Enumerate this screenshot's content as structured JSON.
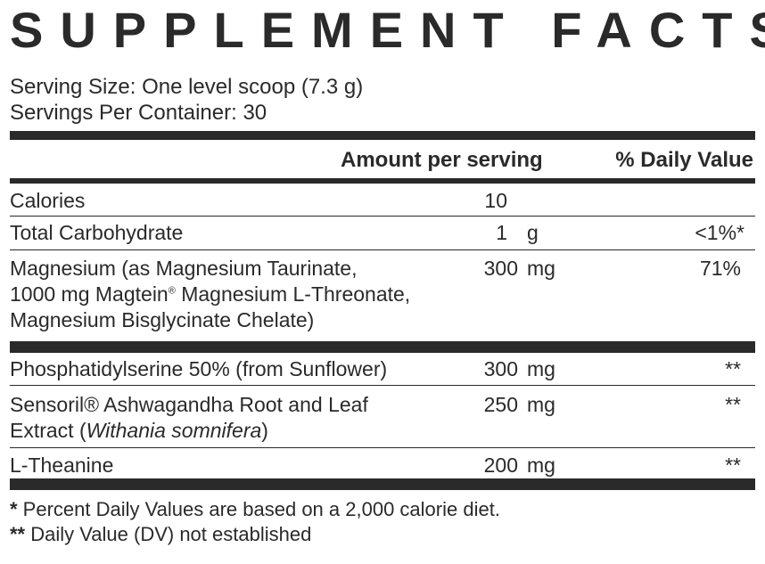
{
  "title": "SUPPLEMENT FACTS",
  "serving_size": "Serving Size: One level scoop (7.3 g)",
  "servings_per_container": "Servings Per Container: 30",
  "header": {
    "amount_per_serving": "Amount per serving",
    "daily_value": "% Daily Value"
  },
  "rows": [
    {
      "name": "Calories",
      "amount": "10",
      "unit": "",
      "dv": ""
    },
    {
      "name": "Total Carbohydrate",
      "amount": "1",
      "unit": "g",
      "dv": "<1%*"
    },
    {
      "name_1": "Magnesium (as Magnesium Taurinate,",
      "name_2a": "1000 mg Magtein",
      "name_2sup": "®",
      "name_2b": " Magnesium L-Threonate,",
      "name_3": "Magnesium Bisglycinate Chelate)",
      "amount": "300",
      "unit": "mg",
      "dv": "71%"
    },
    {
      "name": "Phosphatidylserine 50% (from Sunflower)",
      "amount": "300",
      "unit": "mg",
      "dv": "**"
    },
    {
      "name_1": "Sensoril® Ashwagandha Root and Leaf",
      "name_2a": "Extract (",
      "name_2i": "Withania somnifera",
      "name_2b": ")",
      "amount": "250",
      "unit": "mg",
      "dv": "**"
    },
    {
      "name": "L-Theanine",
      "amount": "200",
      "unit": "mg",
      "dv": "**"
    }
  ],
  "footnotes": {
    "f1_mark": "*",
    "f1_text": " Percent Daily Values are based on a 2,000 calorie diet.",
    "f2_mark": "**",
    "f2_text": " Daily Value (DV) not established"
  },
  "colors": {
    "ink": "#2a2a2a",
    "background": "#ffffff"
  }
}
